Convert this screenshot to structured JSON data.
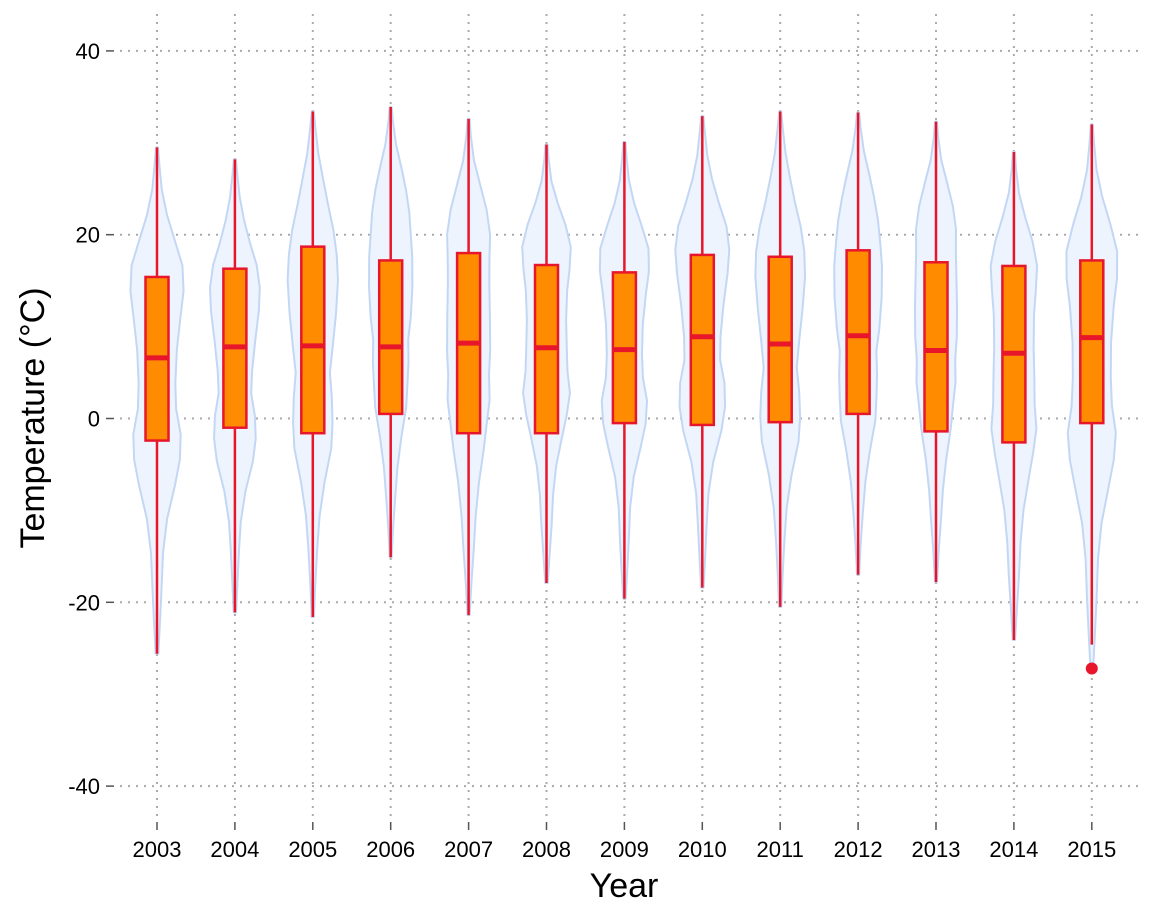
{
  "chart_data": {
    "type": "violin-box",
    "title": "",
    "xlabel": "Year",
    "ylabel": "Temperature (°C)",
    "ylim": [
      -43.5,
      43
    ],
    "yticks": [
      -40,
      -20,
      0,
      20,
      40
    ],
    "grid": true,
    "grid_style": "dotted",
    "colors": {
      "violin_fill": "#eef4fd",
      "violin_stroke": "#c3d7f5",
      "box_fill": "#ff8c00",
      "box_stroke": "#e8162b",
      "whisker": "#e8162b",
      "median": "#e8162b",
      "outlier": "#e8162b",
      "grid": "#aaaaaa"
    },
    "categories": [
      "2003",
      "2004",
      "2005",
      "2006",
      "2007",
      "2008",
      "2009",
      "2010",
      "2011",
      "2012",
      "2013",
      "2014",
      "2015"
    ],
    "boxes": [
      {
        "year": "2003",
        "min": -25.6,
        "q1": -2.4,
        "median": 6.6,
        "q3": 15.4,
        "max": 29.5,
        "outliers": []
      },
      {
        "year": "2004",
        "min": -21.1,
        "q1": -1.0,
        "median": 7.8,
        "q3": 16.3,
        "max": 28.2,
        "outliers": []
      },
      {
        "year": "2005",
        "min": -21.6,
        "q1": -1.6,
        "median": 7.9,
        "q3": 18.7,
        "max": 33.4,
        "outliers": []
      },
      {
        "year": "2006",
        "min": -15.1,
        "q1": 0.5,
        "median": 7.8,
        "q3": 17.2,
        "max": 33.9,
        "outliers": []
      },
      {
        "year": "2007",
        "min": -21.4,
        "q1": -1.6,
        "median": 8.2,
        "q3": 18.0,
        "max": 32.6,
        "outliers": []
      },
      {
        "year": "2008",
        "min": -17.9,
        "q1": -1.6,
        "median": 7.7,
        "q3": 16.7,
        "max": 29.8,
        "outliers": []
      },
      {
        "year": "2009",
        "min": -19.6,
        "q1": -0.5,
        "median": 7.5,
        "q3": 15.9,
        "max": 30.1,
        "outliers": []
      },
      {
        "year": "2010",
        "min": -18.4,
        "q1": -0.7,
        "median": 8.9,
        "q3": 17.8,
        "max": 32.9,
        "outliers": []
      },
      {
        "year": "2011",
        "min": -20.5,
        "q1": -0.4,
        "median": 8.1,
        "q3": 17.6,
        "max": 33.4,
        "outliers": []
      },
      {
        "year": "2012",
        "min": -17.0,
        "q1": 0.5,
        "median": 9.0,
        "q3": 18.3,
        "max": 33.3,
        "outliers": []
      },
      {
        "year": "2013",
        "min": -17.8,
        "q1": -1.4,
        "median": 7.4,
        "q3": 17.0,
        "max": 32.3,
        "outliers": []
      },
      {
        "year": "2014",
        "min": -24.1,
        "q1": -2.6,
        "median": 7.1,
        "q3": 16.6,
        "max": 29.0,
        "outliers": []
      },
      {
        "year": "2015",
        "min": -24.6,
        "q1": -0.5,
        "median": 8.8,
        "q3": 17.2,
        "max": 32.0,
        "outliers": [
          -27.2
        ]
      }
    ],
    "violin_profile": {
      "y": [
        -26,
        -22,
        -18,
        -14,
        -10,
        -6,
        -3,
        0,
        3,
        6,
        10,
        14,
        17,
        20,
        23,
        26,
        29,
        32,
        34
      ],
      "density": [
        0.05,
        0.12,
        0.2,
        0.28,
        0.45,
        0.72,
        0.85,
        0.9,
        0.8,
        0.84,
        0.9,
        0.97,
        1.0,
        0.95,
        0.72,
        0.45,
        0.22,
        0.1,
        0.04
      ]
    }
  }
}
